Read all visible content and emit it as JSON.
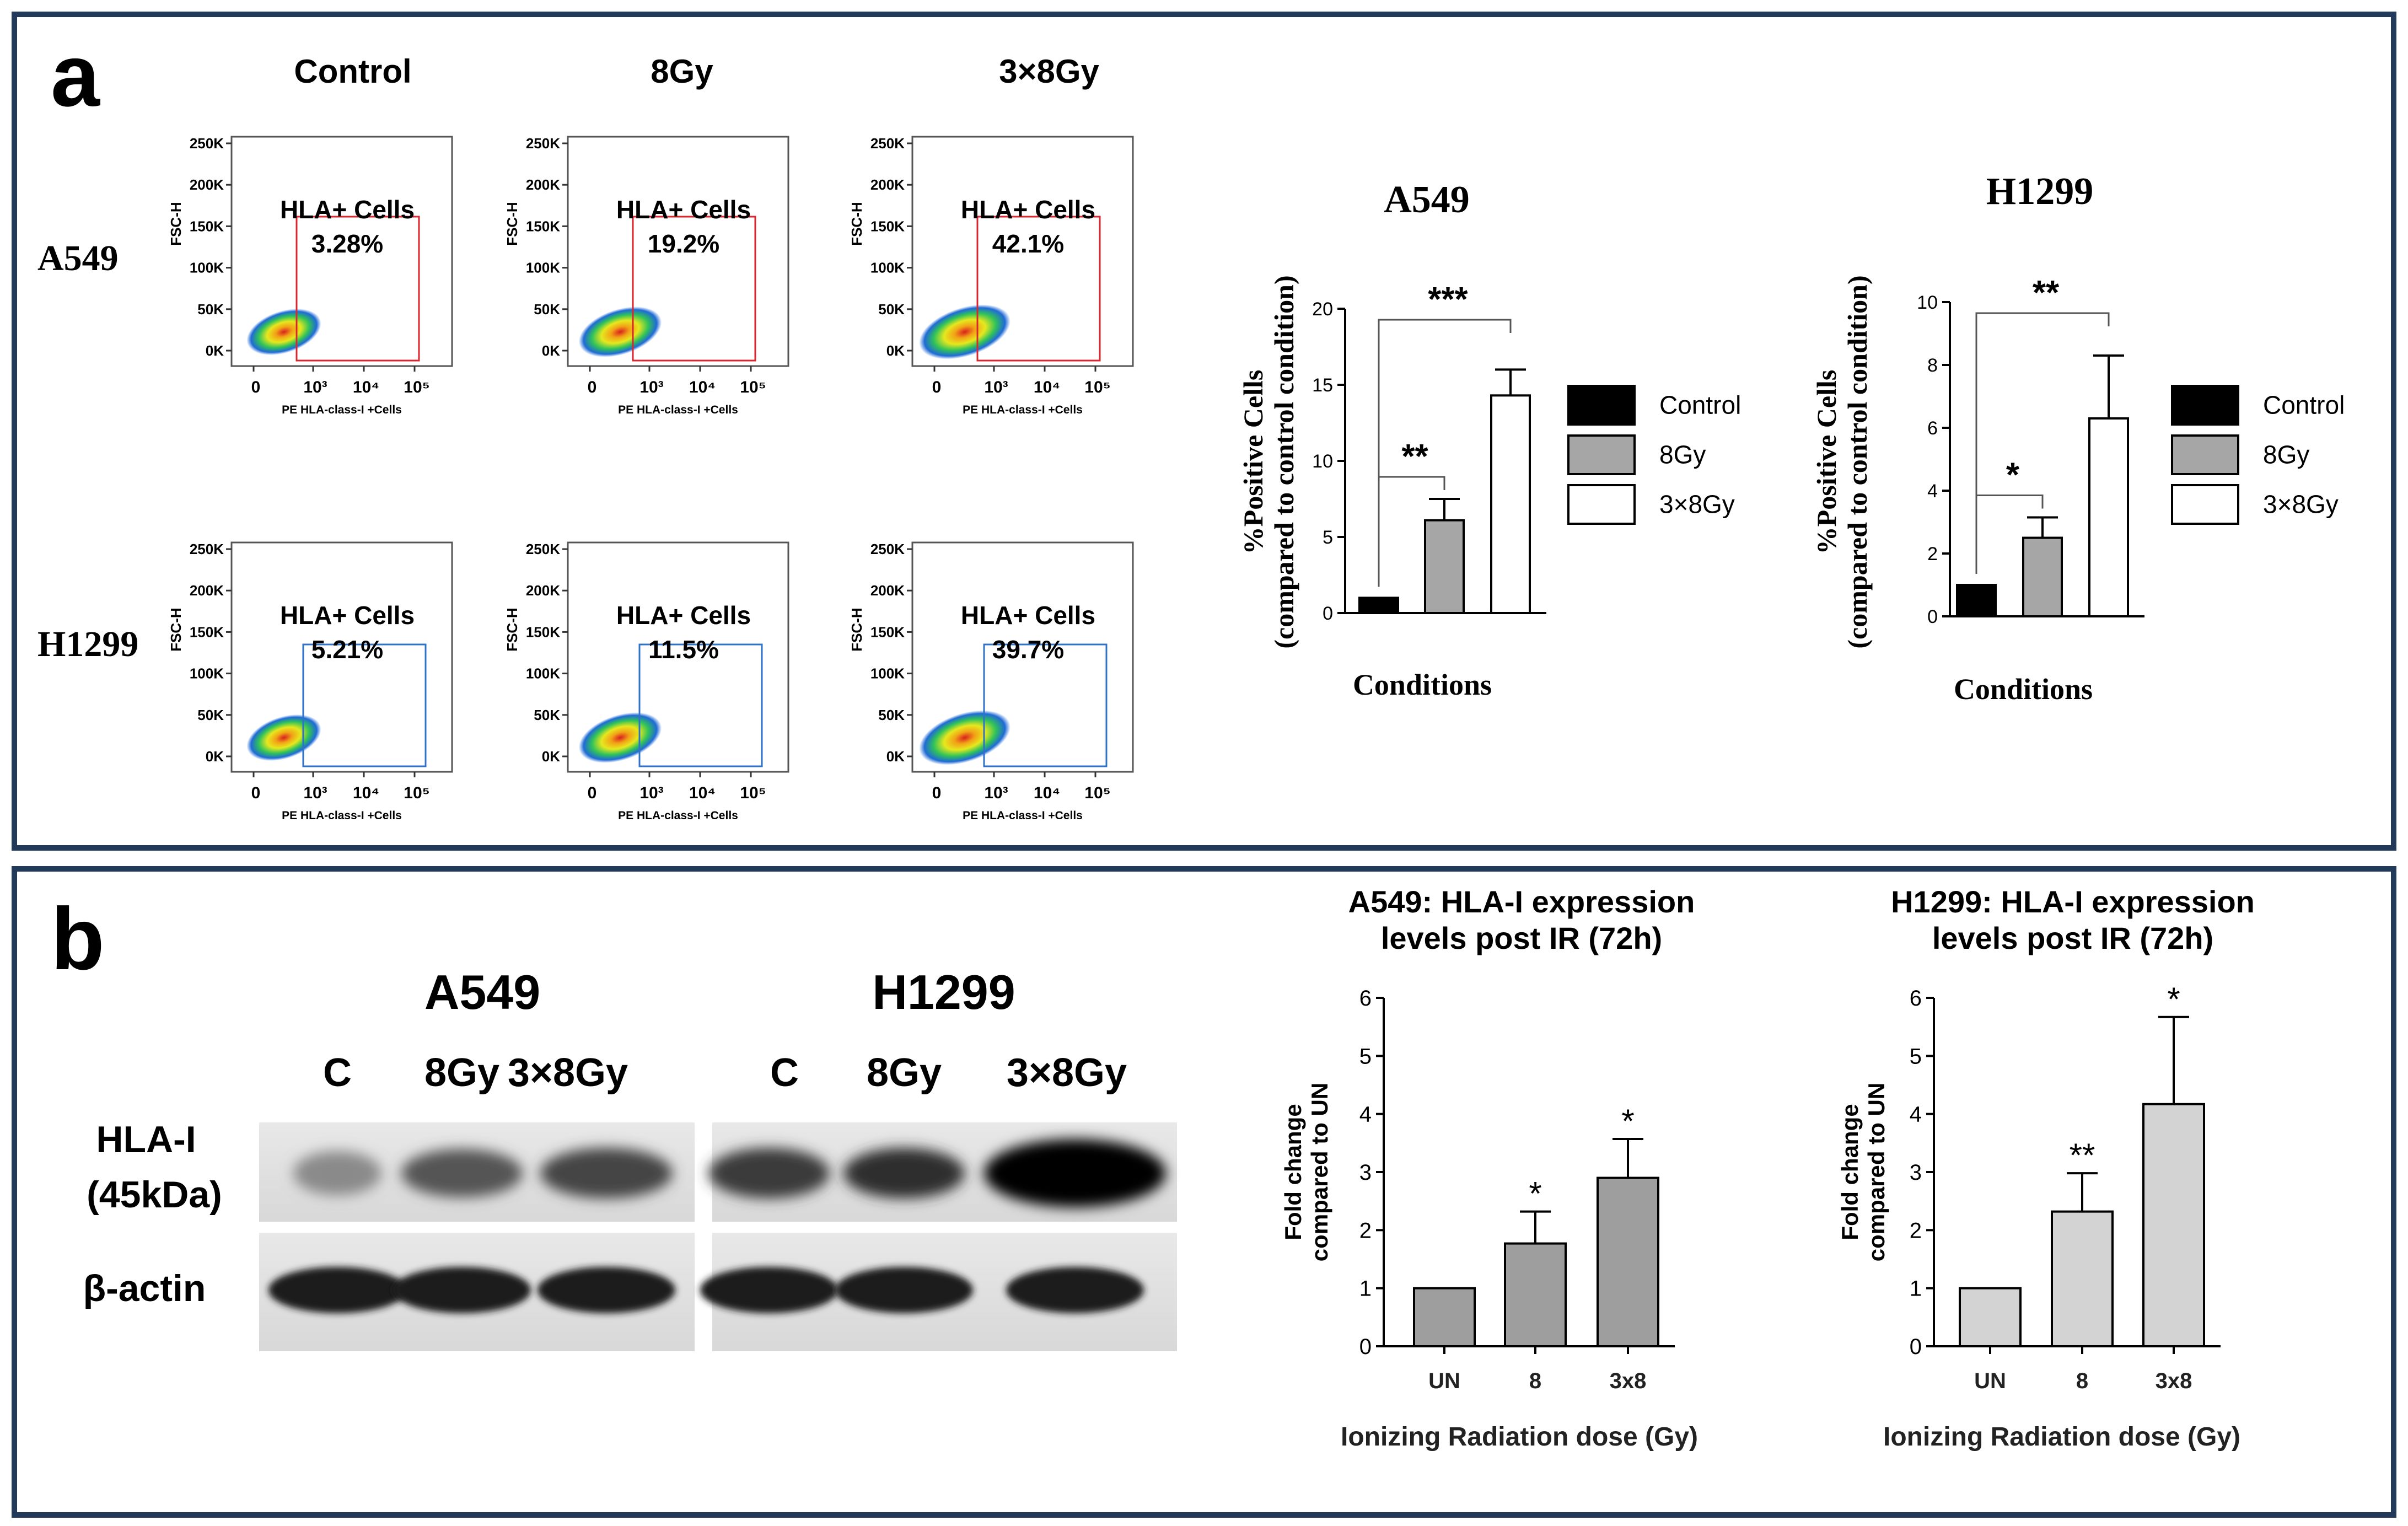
{
  "panel_a": {
    "letter": "a",
    "columns": [
      "Control",
      "8Gy",
      "3×8Gy"
    ],
    "rows": [
      "A549",
      "H1299"
    ],
    "flow": {
      "y_ticks": [
        "250K",
        "200K",
        "150K",
        "100K",
        "50K",
        "0K"
      ],
      "y_label": "FSC-H",
      "x_ticks": [
        "0",
        "10³",
        "10⁴",
        "10⁵"
      ],
      "x_label": "PE HLA-class-I +Cells",
      "gate_label": "HLA+ Cells",
      "gate_colors": {
        "A549": "#d9262f",
        "H1299": "#2e72c9"
      },
      "percent": {
        "A549": [
          "3.28%",
          "19.2%",
          "42.1%"
        ],
        "H1299": [
          "5.21%",
          "11.5%",
          "39.7%"
        ]
      }
    }
  },
  "panel_b": {
    "letter": "b",
    "blot": {
      "cell_lines": [
        "A549",
        "H1299"
      ],
      "lanes": [
        "C",
        "8Gy",
        "3×8Gy",
        "C",
        "8Gy",
        "3×8Gy"
      ],
      "row1_label": [
        "HLA-I",
        "(45kDa)"
      ],
      "row2_label": "β-actin"
    }
  },
  "chart_data": [
    {
      "type": "bar",
      "title": "A549",
      "ylabel": [
        "%Positive Cells",
        "(compared to control condition)"
      ],
      "xlabel": "Conditions",
      "categories": [
        "Control",
        "8Gy",
        "3×8Gy"
      ],
      "values": [
        1.0,
        6.1,
        14.3
      ],
      "errors": [
        0,
        1.4,
        1.7
      ],
      "ylim": [
        0,
        20
      ],
      "yticks": [
        0,
        5,
        10,
        15,
        20
      ],
      "colors": [
        "#000000",
        "#a6a6a6",
        "#ffffff"
      ],
      "legend": [
        "Control",
        "8Gy",
        "3×8Gy"
      ],
      "significance": [
        {
          "from": 0,
          "to": 1,
          "label": "**"
        },
        {
          "from": 0,
          "to": 2,
          "label": "***"
        }
      ]
    },
    {
      "type": "bar",
      "title": "H1299",
      "ylabel": [
        "%Positive Cells",
        "(compared to control condition)"
      ],
      "xlabel": "Conditions",
      "categories": [
        "Control",
        "8Gy",
        "3×8Gy"
      ],
      "values": [
        1.0,
        2.5,
        6.3
      ],
      "errors": [
        0,
        0.65,
        2.0
      ],
      "ylim": [
        0,
        10
      ],
      "yticks": [
        0,
        2,
        4,
        6,
        8,
        10
      ],
      "colors": [
        "#000000",
        "#a6a6a6",
        "#ffffff"
      ],
      "legend": [
        "Control",
        "8Gy",
        "3×8Gy"
      ],
      "significance": [
        {
          "from": 0,
          "to": 1,
          "label": "*"
        },
        {
          "from": 0,
          "to": 2,
          "label": "**"
        }
      ]
    },
    {
      "type": "bar",
      "title": [
        "A549: HLA-I expression",
        "levels post IR (72h)"
      ],
      "ylabel": [
        "Fold change",
        "compared to UN"
      ],
      "xlabel": "Ionizing Radiation dose (Gy)",
      "categories": [
        "UN",
        "8",
        "3x8"
      ],
      "values": [
        1.0,
        1.77,
        2.9
      ],
      "errors": [
        0,
        0.55,
        0.67
      ],
      "ylim": [
        0,
        6
      ],
      "yticks": [
        0,
        1,
        2,
        3,
        4,
        5,
        6
      ],
      "colors": [
        "#9e9e9e",
        "#9e9e9e",
        "#9e9e9e"
      ],
      "annotations": [
        "",
        "*",
        "*"
      ]
    },
    {
      "type": "bar",
      "title": [
        "H1299: HLA-I expression",
        "levels post IR (72h)"
      ],
      "ylabel": [
        "Fold change",
        "compared to UN"
      ],
      "xlabel": "Ionizing Radiation dose (Gy)",
      "categories": [
        "UN",
        "8",
        "3x8"
      ],
      "values": [
        1.0,
        2.32,
        4.17
      ],
      "errors": [
        0,
        0.66,
        1.5
      ],
      "ylim": [
        0,
        6
      ],
      "yticks": [
        0,
        1,
        2,
        3,
        4,
        5,
        6
      ],
      "colors": [
        "#d3d3d3",
        "#d3d3d3",
        "#d3d3d3"
      ],
      "annotations": [
        "",
        "**",
        "*"
      ]
    }
  ]
}
